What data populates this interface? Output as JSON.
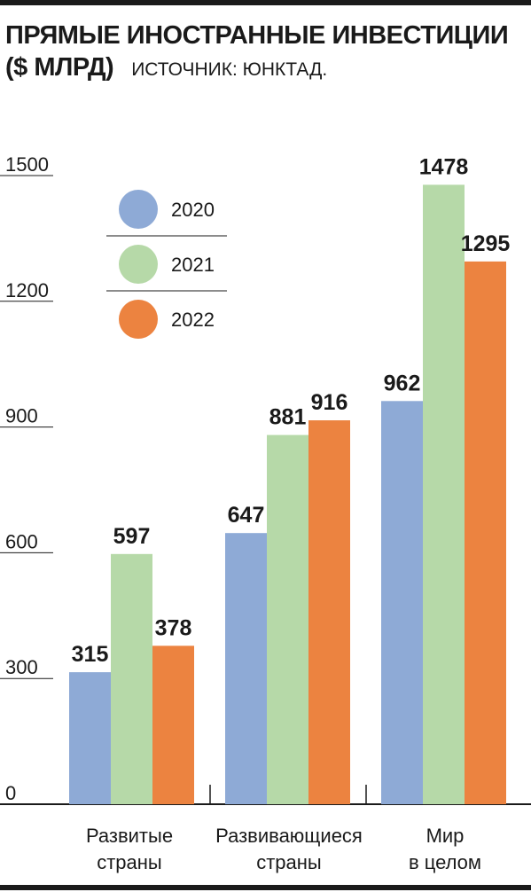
{
  "header": {
    "title_line1": "ПРЯМЫЕ ИНОСТРАННЫЕ ИНВЕСТИЦИИ",
    "title_line2": "($ МЛРД)",
    "source": "ИСТОЧНИК: ЮНКТАД."
  },
  "chart_data": {
    "type": "bar",
    "categories": [
      [
        "Развитые",
        "страны"
      ],
      [
        "Развивающиеся",
        "страны"
      ],
      [
        "Мир",
        "в целом"
      ]
    ],
    "series": [
      {
        "name": "2020",
        "color": "#8eaad6",
        "values": [
          315,
          647,
          962
        ]
      },
      {
        "name": "2021",
        "color": "#b6d9a8",
        "values": [
          597,
          881,
          1478
        ]
      },
      {
        "name": "2022",
        "color": "#ec8340",
        "values": [
          378,
          916,
          1295
        ]
      }
    ],
    "yticks": [
      0,
      300,
      600,
      900,
      1200,
      1500
    ],
    "ylim": [
      0,
      1500
    ],
    "legend_position": "top-left",
    "title": "",
    "xlabel": "",
    "ylabel": ""
  }
}
